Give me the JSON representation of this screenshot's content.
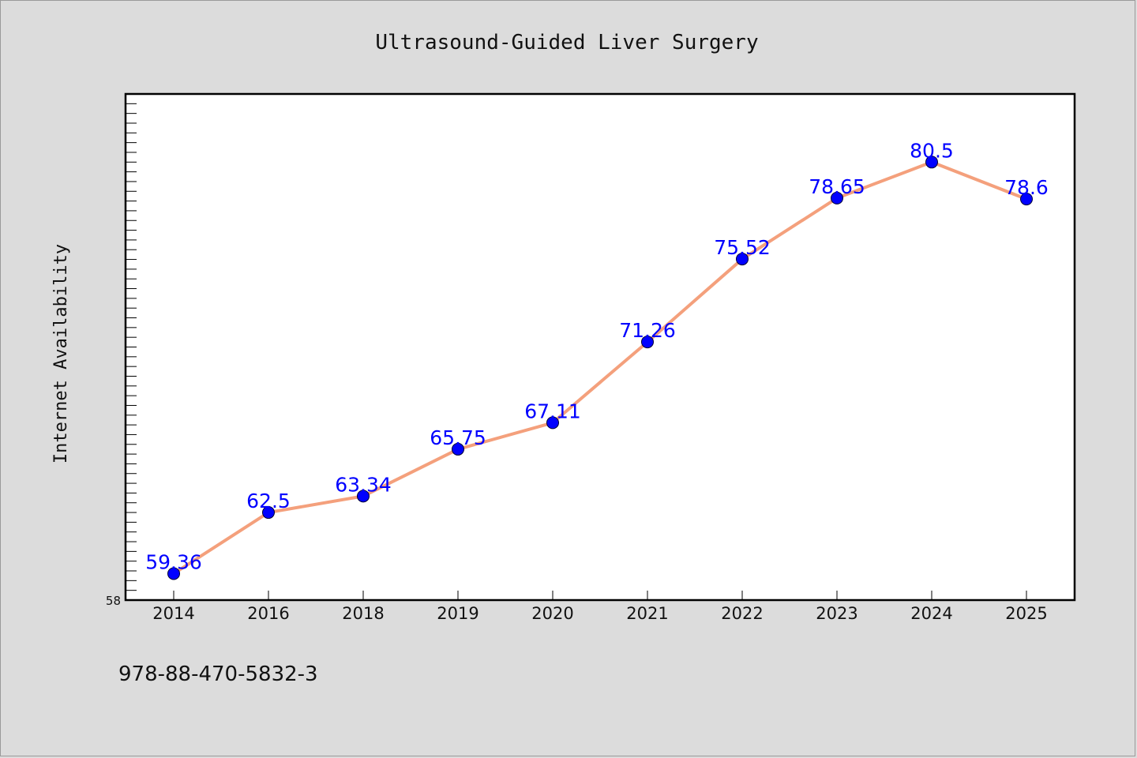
{
  "chart_data": {
    "type": "line",
    "title": "Ultrasound-Guided Liver Surgery",
    "xlabel": "",
    "ylabel": "Internet Availability",
    "categories": [
      "2014",
      "2016",
      "2018",
      "2019",
      "2020",
      "2021",
      "2022",
      "2023",
      "2024",
      "2025"
    ],
    "series": [
      {
        "values": [
          59.36,
          62.5,
          63.34,
          65.75,
          67.11,
          71.26,
          75.52,
          78.65,
          80.5,
          78.6
        ],
        "data_labels": [
          "59.36",
          "62.5",
          "63.34",
          "65.75",
          "67.11",
          "71.26",
          "75.52",
          "78.65",
          "80.5",
          "78.6"
        ],
        "line_color": "#f4a07c",
        "marker_color": "#0000ff"
      }
    ],
    "ylim": [
      58,
      84
    ],
    "ytick_labels": [
      "58"
    ],
    "grid": false,
    "legend": "none"
  },
  "footer": {
    "isbn": "978-88-470-5832-3"
  },
  "colors": {
    "background": "#dcdcdc",
    "plot_background": "#ffffff",
    "label_color": "#0000ff"
  }
}
